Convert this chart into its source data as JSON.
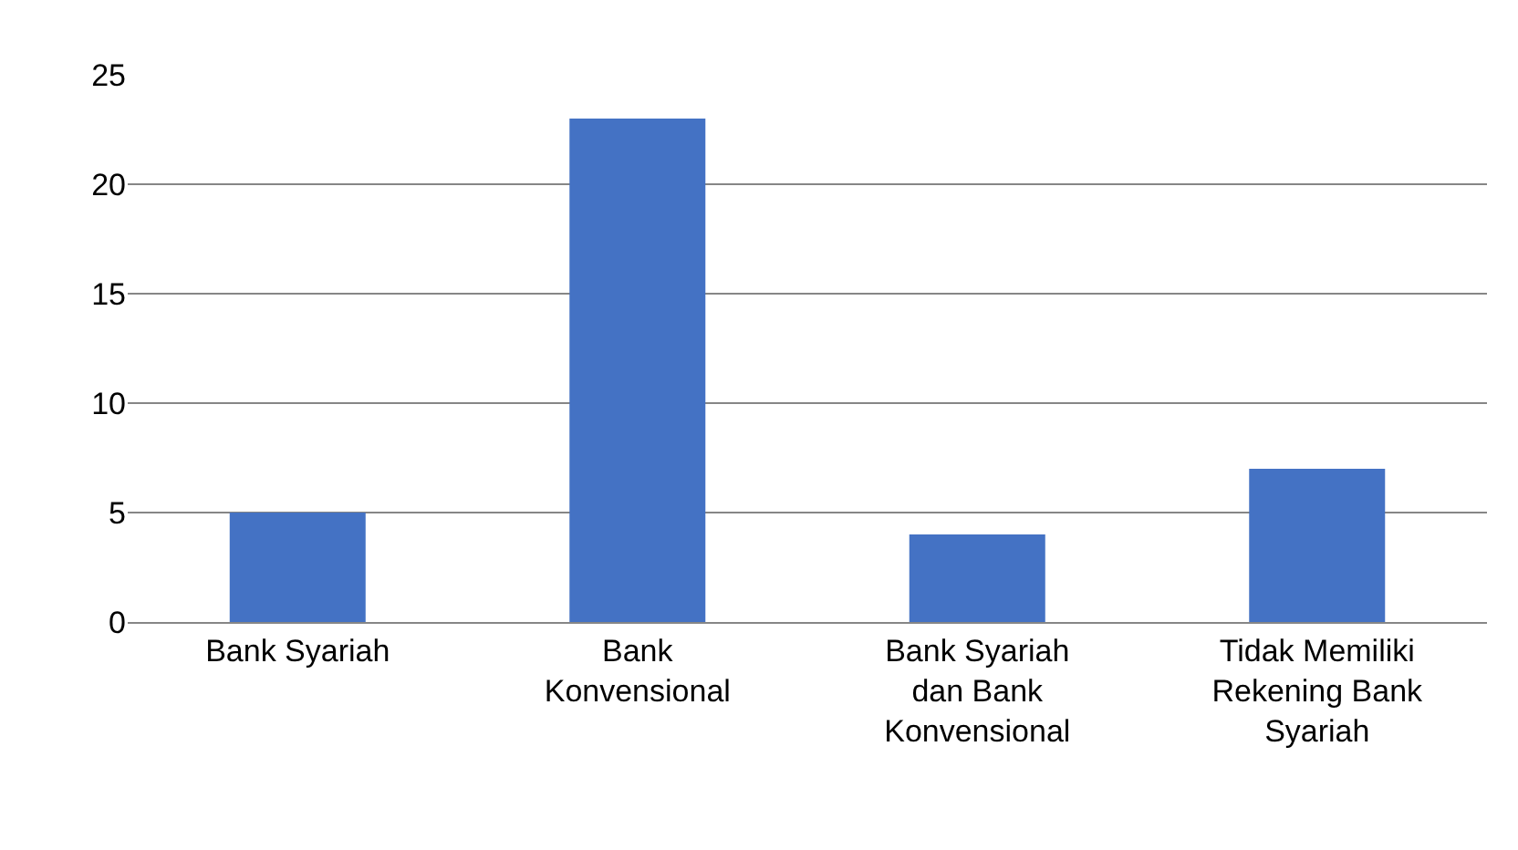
{
  "chart_data": {
    "type": "bar",
    "categories": [
      "Bank Syariah",
      "Bank Konvensional",
      "Bank Syariah dan Bank Konvensional",
      "Tidak Memiliki Rekening Bank Syariah"
    ],
    "values": [
      5,
      23,
      4,
      7
    ],
    "color": "#4472c4",
    "ylim": [
      0,
      25
    ],
    "yticks": [
      0,
      5,
      10,
      15,
      20,
      25
    ],
    "grid": "y"
  }
}
